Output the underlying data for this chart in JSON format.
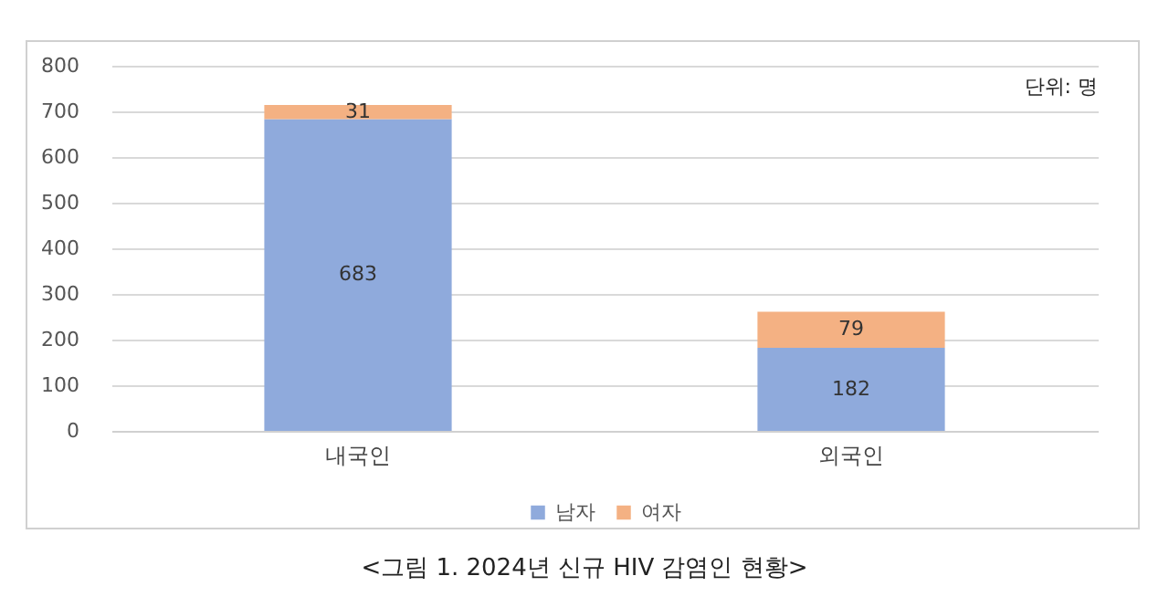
{
  "chart_data": {
    "type": "bar",
    "stacked": true,
    "categories": [
      "내국인",
      "외국인"
    ],
    "series": [
      {
        "name": "남자",
        "color": "#8faadc",
        "values": [
          683,
          182
        ]
      },
      {
        "name": "여자",
        "color": "#f4b183",
        "values": [
          31,
          79
        ]
      }
    ],
    "ylim": [
      0,
      800
    ],
    "yticks": [
      0,
      100,
      200,
      300,
      400,
      500,
      600,
      700,
      800
    ],
    "grid": "y",
    "legend": "bottom",
    "data_labels": true,
    "annotations": [
      "단위: 명",
      "<그림 1. 2024년 신규 HIV 감염인 현황>"
    ]
  }
}
